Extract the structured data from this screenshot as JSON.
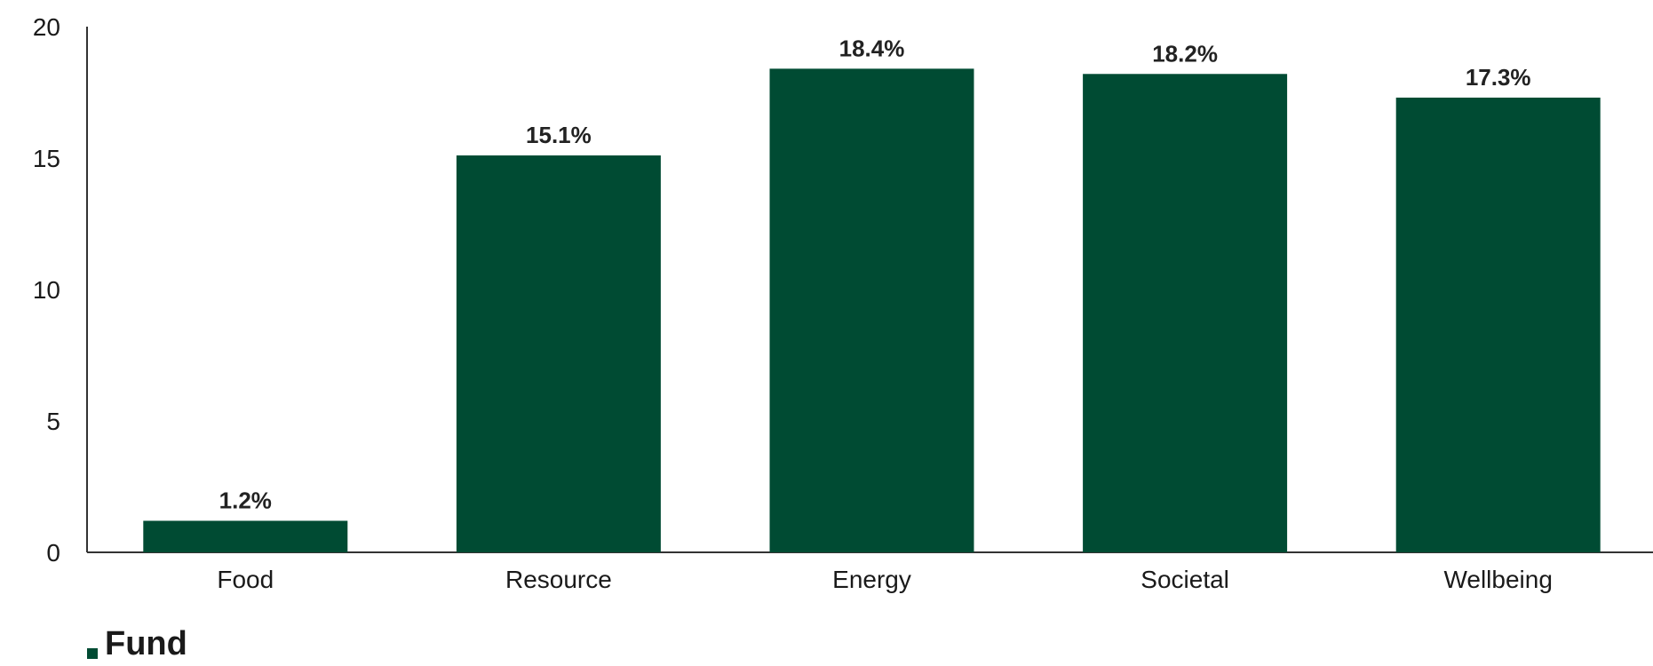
{
  "chart_data": {
    "type": "bar",
    "categories": [
      "Food",
      "Resource",
      "Energy",
      "Societal",
      "Wellbeing"
    ],
    "series": [
      {
        "name": "Fund",
        "values": [
          1.2,
          15.1,
          18.4,
          18.2,
          17.3
        ],
        "data_labels": [
          "1.2%",
          "15.1%",
          "18.4%",
          "18.2%",
          "17.3%"
        ],
        "color": "#004b33"
      }
    ],
    "yticks": [
      0,
      5,
      10,
      15,
      20
    ],
    "ylim": [
      0,
      20
    ],
    "grid": false,
    "legend": "bottom-left"
  }
}
